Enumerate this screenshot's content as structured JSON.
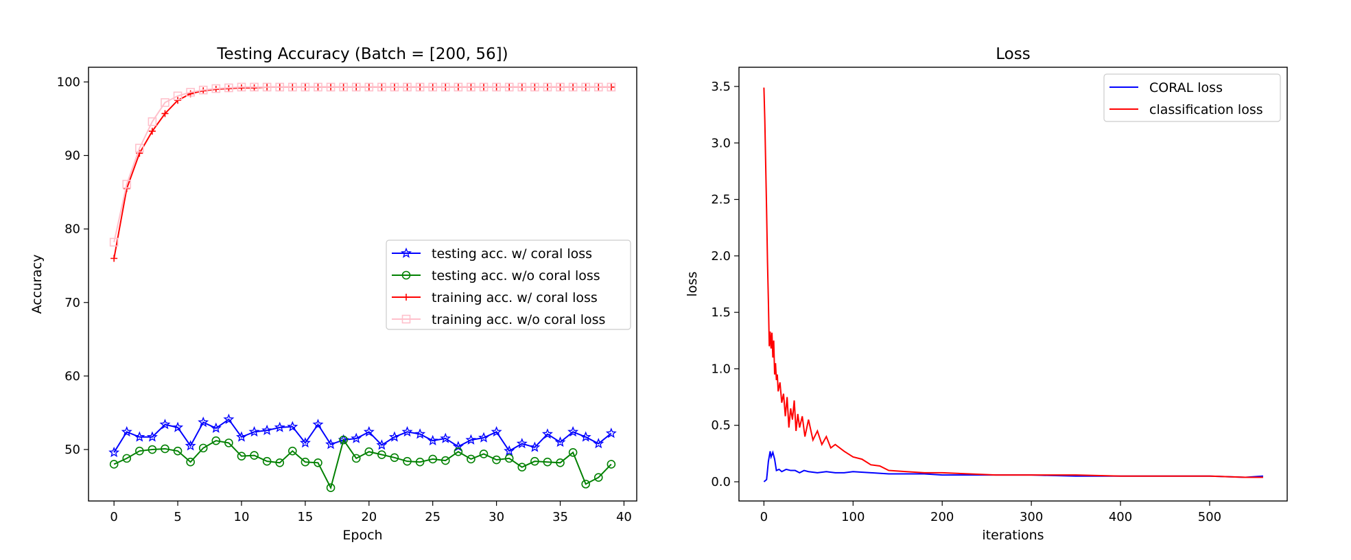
{
  "chart_data": [
    {
      "type": "line",
      "title": "Testing Accuracy (Batch = [200, 56])",
      "xlabel": "Epoch",
      "ylabel": "Accuracy",
      "xlim": [
        -2,
        41
      ],
      "ylim": [
        43,
        102
      ],
      "xticks": [
        0,
        5,
        10,
        15,
        20,
        25,
        30,
        35,
        40
      ],
      "yticks": [
        50,
        60,
        70,
        80,
        90,
        100
      ],
      "legend_position": "center-right",
      "x": [
        0,
        1,
        2,
        3,
        4,
        5,
        6,
        7,
        8,
        9,
        10,
        11,
        12,
        13,
        14,
        15,
        16,
        17,
        18,
        19,
        20,
        21,
        22,
        23,
        24,
        25,
        26,
        27,
        28,
        29,
        30,
        31,
        32,
        33,
        34,
        35,
        36,
        37,
        38,
        39
      ],
      "series": [
        {
          "name": "testing acc. w/ coral loss",
          "color": "#0000ff",
          "marker": "star",
          "values": [
            49.6,
            52.4,
            51.7,
            51.7,
            53.4,
            53.0,
            50.5,
            53.7,
            52.9,
            54.1,
            51.7,
            52.4,
            52.6,
            53.0,
            53.1,
            50.9,
            53.4,
            50.7,
            51.3,
            51.5,
            52.4,
            50.6,
            51.7,
            52.4,
            52.1,
            51.2,
            51.5,
            50.4,
            51.3,
            51.6,
            52.4,
            49.8,
            50.8,
            50.3,
            52.1,
            51.0,
            52.4,
            51.7,
            50.8,
            52.2
          ]
        },
        {
          "name": "testing acc. w/o coral loss",
          "color": "#008000",
          "marker": "circle",
          "values": [
            48.0,
            48.8,
            49.8,
            50.0,
            50.1,
            49.8,
            48.3,
            50.2,
            51.2,
            50.9,
            49.1,
            49.2,
            48.4,
            48.2,
            49.8,
            48.3,
            48.2,
            44.8,
            51.3,
            48.8,
            49.7,
            49.3,
            48.9,
            48.4,
            48.3,
            48.7,
            48.5,
            49.7,
            48.7,
            49.4,
            48.6,
            48.8,
            47.6,
            48.4,
            48.3,
            48.2,
            49.6,
            45.3,
            46.2,
            48.0
          ]
        },
        {
          "name": "training acc. w/ coral loss",
          "color": "#ff0000",
          "marker": "plus",
          "values": [
            76.0,
            85.5,
            90.3,
            93.3,
            95.7,
            97.5,
            98.4,
            98.8,
            99.0,
            99.1,
            99.2,
            99.2,
            99.3,
            99.3,
            99.3,
            99.3,
            99.3,
            99.3,
            99.3,
            99.3,
            99.3,
            99.3,
            99.3,
            99.3,
            99.3,
            99.3,
            99.3,
            99.3,
            99.3,
            99.3,
            99.3,
            99.3,
            99.3,
            99.3,
            99.3,
            99.3,
            99.3,
            99.3,
            99.3,
            99.3
          ]
        },
        {
          "name": "training acc. w/o coral loss",
          "color": "#ffc0cb",
          "marker": "square",
          "values": [
            78.2,
            86.1,
            91.0,
            94.6,
            97.2,
            98.1,
            98.6,
            98.9,
            99.1,
            99.2,
            99.3,
            99.3,
            99.3,
            99.3,
            99.3,
            99.3,
            99.3,
            99.3,
            99.3,
            99.3,
            99.3,
            99.3,
            99.3,
            99.3,
            99.3,
            99.3,
            99.3,
            99.3,
            99.3,
            99.3,
            99.3,
            99.3,
            99.3,
            99.3,
            99.3,
            99.3,
            99.3,
            99.3,
            99.3,
            99.3
          ]
        }
      ]
    },
    {
      "type": "line",
      "title": "Loss",
      "xlabel": "iterations",
      "ylabel": "loss",
      "xlim": [
        -28,
        587
      ],
      "ylim": [
        -0.17,
        3.67
      ],
      "xticks": [
        0,
        100,
        200,
        300,
        400,
        500
      ],
      "yticks": [
        0.0,
        0.5,
        1.0,
        1.5,
        2.0,
        2.5,
        3.0,
        3.5
      ],
      "legend_position": "top-right",
      "series": [
        {
          "name": "CORAL loss",
          "color": "#0000ff",
          "x": [
            0,
            3,
            5,
            7,
            8,
            10,
            12,
            14,
            17,
            20,
            25,
            30,
            35,
            40,
            45,
            50,
            60,
            70,
            80,
            90,
            100,
            120,
            140,
            160,
            180,
            200,
            230,
            260,
            300,
            350,
            400,
            450,
            500,
            540,
            560
          ],
          "y": [
            0.0,
            0.02,
            0.18,
            0.27,
            0.22,
            0.26,
            0.2,
            0.1,
            0.11,
            0.09,
            0.11,
            0.1,
            0.1,
            0.08,
            0.1,
            0.09,
            0.08,
            0.09,
            0.08,
            0.08,
            0.09,
            0.08,
            0.07,
            0.07,
            0.07,
            0.06,
            0.06,
            0.06,
            0.06,
            0.05,
            0.05,
            0.05,
            0.05,
            0.04,
            0.05
          ]
        },
        {
          "name": "classification loss",
          "color": "#ff0000",
          "x": [
            0,
            1,
            2,
            3,
            4,
            5,
            6,
            7,
            8,
            9,
            10,
            11,
            12,
            13,
            14,
            15,
            16,
            18,
            20,
            22,
            24,
            26,
            28,
            30,
            32,
            34,
            36,
            38,
            40,
            43,
            46,
            50,
            55,
            60,
            65,
            70,
            75,
            80,
            90,
            100,
            110,
            120,
            130,
            140,
            160,
            180,
            200,
            230,
            260,
            300,
            350,
            400,
            450,
            500,
            540,
            560
          ],
          "y": [
            3.49,
            3.2,
            2.8,
            2.4,
            1.95,
            1.6,
            1.2,
            1.33,
            1.18,
            1.32,
            1.1,
            1.25,
            0.95,
            1.05,
            0.9,
            0.95,
            0.8,
            0.88,
            0.7,
            0.78,
            0.58,
            0.75,
            0.48,
            0.65,
            0.55,
            0.72,
            0.45,
            0.6,
            0.48,
            0.58,
            0.4,
            0.55,
            0.37,
            0.45,
            0.33,
            0.4,
            0.3,
            0.33,
            0.27,
            0.22,
            0.2,
            0.15,
            0.14,
            0.1,
            0.09,
            0.08,
            0.08,
            0.07,
            0.06,
            0.06,
            0.06,
            0.05,
            0.05,
            0.05,
            0.04,
            0.04
          ]
        }
      ]
    }
  ]
}
